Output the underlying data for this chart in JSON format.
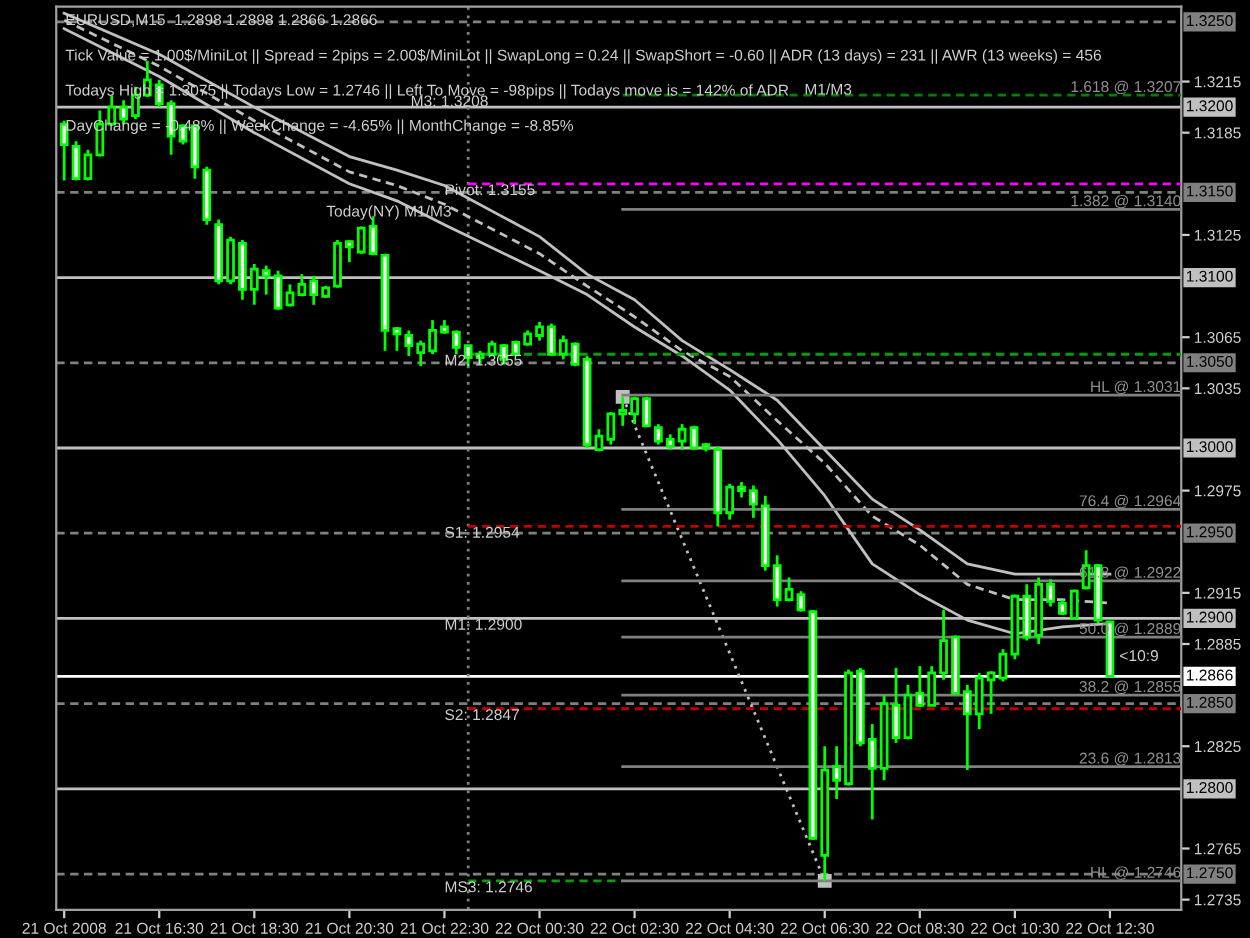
{
  "chart_data": {
    "type": "candlestick",
    "title": "EURUSD,M15  1.2898 1.2898 1.2866 1.2866",
    "color": "#00ff00",
    "annotations": [
      "Tick Value = 1.00$/MiniLot || Spread = 2pips = 2.00$/MiniLot || SwapLong = 0.24 || SwapShort = -0.60 || ADR (13 days) = 231 || AWR (13 weeks) = 456",
      "Todays High = 1.3075 || Todays Low = 1.2746 || Left To Move = -98pips || Todays move is = 142% of ADR",
      "DayChange = -0.48% || WeekChange = -4.65% || MonthChange = -8.85%",
      "Today(NY) M1/M3",
      "M1/M3",
      "M3: 1.3208",
      {
        "text": "Pivot: 1.3155",
        "x": "2008-10-21T22:30",
        "y": 1.3155
      },
      {
        "text": "M2: 1.3055",
        "x": "2008-10-21T22:30",
        "y": 1.3055
      },
      {
        "text": "S1: 1.2954",
        "x": "2008-10-21T22:30",
        "y": 1.2954
      },
      {
        "text": "M1: 1.2900",
        "x": "2008-10-21T22:30",
        "y": 1.29
      },
      {
        "text": "S2: 1.2847",
        "x": "2008-10-21T22:30",
        "y": 1.2847
      },
      {
        "text": "MS3: 1.2746",
        "x": "2008-10-21T22:30",
        "y": 1.2746
      },
      {
        "text": "1.618 @ 1.3207",
        "x": "2008-10-22T14:00",
        "y": 1.3207
      },
      {
        "text": "1.382 @ 1.3140",
        "x": "2008-10-22T14:00",
        "y": 1.314
      },
      {
        "text": "HL @ 1.3031",
        "x": "2008-10-22T14:00",
        "y": 1.3031
      },
      {
        "text": "76.4 @ 1.2964",
        "x": "2008-10-22T14:00",
        "y": 1.2964
      },
      {
        "text": "61.8 @ 1.2922",
        "x": "2008-10-22T14:00",
        "y": 1.2922
      },
      {
        "text": "50.0 @ 1.2889",
        "x": "2008-10-22T14:00",
        "y": 1.2889
      },
      {
        "text": "38.2 @ 1.2855",
        "x": "2008-10-22T14:00",
        "y": 1.2855
      },
      {
        "text": "23.6 @ 1.2813",
        "x": "2008-10-22T14:00",
        "y": 1.2813
      },
      {
        "text": "HL @ 1.2746",
        "x": "2008-10-22T14:00",
        "y": 1.2746
      },
      "<10:9"
    ],
    "x": [
      "2008-10-21T14:30",
      "2008-10-21T14:45",
      "2008-10-21T15:00",
      "2008-10-21T15:15",
      "2008-10-21T15:30",
      "2008-10-21T15:45",
      "2008-10-21T16:00",
      "2008-10-21T16:15",
      "2008-10-21T16:30",
      "2008-10-21T16:45",
      "2008-10-21T17:00",
      "2008-10-21T17:15",
      "2008-10-21T17:30",
      "2008-10-21T17:45",
      "2008-10-21T18:00",
      "2008-10-21T18:15",
      "2008-10-21T18:30",
      "2008-10-21T18:45",
      "2008-10-21T19:00",
      "2008-10-21T19:15",
      "2008-10-21T19:30",
      "2008-10-21T19:45",
      "2008-10-21T20:00",
      "2008-10-21T20:15",
      "2008-10-21T20:30",
      "2008-10-21T20:45",
      "2008-10-21T21:00",
      "2008-10-21T21:15",
      "2008-10-21T21:30",
      "2008-10-21T21:45",
      "2008-10-21T22:00",
      "2008-10-21T22:15",
      "2008-10-21T22:30",
      "2008-10-21T22:45",
      "2008-10-21T23:00",
      "2008-10-21T23:15",
      "2008-10-21T23:30",
      "2008-10-21T23:45",
      "2008-10-22T00:00",
      "2008-10-22T00:15",
      "2008-10-22T00:30",
      "2008-10-22T00:45",
      "2008-10-22T01:00",
      "2008-10-22T01:15",
      "2008-10-22T01:30",
      "2008-10-22T01:45",
      "2008-10-22T02:00",
      "2008-10-22T02:15",
      "2008-10-22T02:30",
      "2008-10-22T02:45",
      "2008-10-22T03:00",
      "2008-10-22T03:15",
      "2008-10-22T03:30",
      "2008-10-22T03:45",
      "2008-10-22T04:00",
      "2008-10-22T04:15",
      "2008-10-22T04:30",
      "2008-10-22T04:45",
      "2008-10-22T05:00",
      "2008-10-22T05:15",
      "2008-10-22T05:30",
      "2008-10-22T05:45",
      "2008-10-22T06:00",
      "2008-10-22T06:15",
      "2008-10-22T06:30",
      "2008-10-22T06:45",
      "2008-10-22T07:00",
      "2008-10-22T07:15",
      "2008-10-22T07:30",
      "2008-10-22T07:45",
      "2008-10-22T08:00",
      "2008-10-22T08:15",
      "2008-10-22T08:30",
      "2008-10-22T08:45",
      "2008-10-22T09:00",
      "2008-10-22T09:15",
      "2008-10-22T09:30",
      "2008-10-22T09:45",
      "2008-10-22T10:00",
      "2008-10-22T10:15",
      "2008-10-22T10:30",
      "2008-10-22T10:45",
      "2008-10-22T11:00",
      "2008-10-22T11:15",
      "2008-10-22T11:30",
      "2008-10-22T11:45",
      "2008-10-22T12:00",
      "2008-10-22T12:15",
      "2008-10-22T12:30"
    ],
    "ohlc": [
      [
        1.319,
        1.3192,
        1.3157,
        1.3178
      ],
      [
        1.3177,
        1.318,
        1.3157,
        1.3158
      ],
      [
        1.3158,
        1.3175,
        1.3157,
        1.3172
      ],
      [
        1.3172,
        1.3198,
        1.3171,
        1.319
      ],
      [
        1.319,
        1.3207,
        1.3189,
        1.32
      ],
      [
        1.32,
        1.3204,
        1.319,
        1.3193
      ],
      [
        1.3195,
        1.3212,
        1.3193,
        1.3207
      ],
      [
        1.3207,
        1.3227,
        1.3206,
        1.3216
      ],
      [
        1.3213,
        1.3216,
        1.32,
        1.3202
      ],
      [
        1.3202,
        1.3204,
        1.3172,
        1.3183
      ],
      [
        1.3189,
        1.319,
        1.3178,
        1.318
      ],
      [
        1.3189,
        1.319,
        1.3158,
        1.3165
      ],
      [
        1.3163,
        1.3165,
        1.3131,
        1.3134
      ],
      [
        1.3131,
        1.3134,
        1.3096,
        1.3098
      ],
      [
        1.3098,
        1.3124,
        1.3096,
        1.3122
      ],
      [
        1.312,
        1.3122,
        1.3087,
        1.3093
      ],
      [
        1.3093,
        1.3108,
        1.3084,
        1.3105
      ],
      [
        1.3104,
        1.3107,
        1.309,
        1.3101
      ],
      [
        1.3101,
        1.3104,
        1.3081,
        1.3082
      ],
      [
        1.3084,
        1.3096,
        1.3083,
        1.3091
      ],
      [
        1.309,
        1.3102,
        1.3089,
        1.3096
      ],
      [
        1.3098,
        1.3101,
        1.3084,
        1.309
      ],
      [
        1.3089,
        1.3095,
        1.3088,
        1.3094
      ],
      [
        1.3095,
        1.3122,
        1.3094,
        1.312
      ],
      [
        1.3121,
        1.3122,
        1.3109,
        1.3118
      ],
      [
        1.3115,
        1.313,
        1.3114,
        1.3129
      ],
      [
        1.313,
        1.3136,
        1.3113,
        1.3114
      ],
      [
        1.3113,
        1.3114,
        1.3057,
        1.3069
      ],
      [
        1.307,
        1.3071,
        1.3057,
        1.3067
      ],
      [
        1.3066,
        1.3069,
        1.3054,
        1.306
      ],
      [
        1.3056,
        1.3063,
        1.3048,
        1.3061
      ],
      [
        1.3057,
        1.3075,
        1.3055,
        1.3069
      ],
      [
        1.3071,
        1.3075,
        1.3067,
        1.3068
      ],
      [
        1.3068,
        1.3069,
        1.3055,
        1.3059
      ],
      [
        1.306,
        1.306,
        1.3048,
        1.3053
      ],
      [
        1.3053,
        1.3057,
        1.3049,
        1.3055
      ],
      [
        1.3055,
        1.3063,
        1.3054,
        1.3061
      ],
      [
        1.306,
        1.3061,
        1.3049,
        1.3052
      ],
      [
        1.3062,
        1.3063,
        1.3054,
        1.3055
      ],
      [
        1.3061,
        1.3069,
        1.306,
        1.3067
      ],
      [
        1.3066,
        1.3074,
        1.3063,
        1.3071
      ],
      [
        1.3071,
        1.3073,
        1.3054,
        1.3055
      ],
      [
        1.3055,
        1.3066,
        1.3052,
        1.3063
      ],
      [
        1.3061,
        1.3062,
        1.3048,
        1.3049
      ],
      [
        1.3052,
        1.3054,
        1.3,
        1.3002
      ],
      [
        1.2999,
        1.3011,
        1.2998,
        1.3007
      ],
      [
        1.3005,
        1.3021,
        1.3002,
        1.302
      ],
      [
        1.302,
        1.303,
        1.3013,
        1.3022
      ],
      [
        1.302,
        1.303,
        1.3014,
        1.3029
      ],
      [
        1.3029,
        1.303,
        1.3013,
        1.3013
      ],
      [
        1.3012,
        1.3014,
        1.3002,
        1.3004
      ],
      [
        1.3005,
        1.3008,
        1.2999,
        1.3001
      ],
      [
        1.3004,
        1.3014,
        1.2999,
        1.3011
      ],
      [
        1.3012,
        1.3013,
        1.2999,
        1.3
      ],
      [
        1.3002,
        1.3003,
        1.2998,
        1.3
      ],
      [
        1.2999,
        1.3001,
        1.2954,
        1.2962
      ],
      [
        1.2962,
        1.2979,
        1.2958,
        1.2977
      ],
      [
        1.2977,
        1.298,
        1.2971,
        1.2975
      ],
      [
        1.2975,
        1.2978,
        1.2959,
        1.2967
      ],
      [
        1.2966,
        1.2972,
        1.2928,
        1.2931
      ],
      [
        1.2931,
        1.2937,
        1.2907,
        1.2911
      ],
      [
        1.2911,
        1.2924,
        1.291,
        1.2917
      ],
      [
        1.2914,
        1.2916,
        1.2904,
        1.2905
      ],
      [
        1.2904,
        1.2905,
        1.277,
        1.2771
      ],
      [
        1.2761,
        1.2825,
        1.2746,
        1.2811
      ],
      [
        1.2813,
        1.2825,
        1.2794,
        1.2805
      ],
      [
        1.2803,
        1.287,
        1.2802,
        1.2868
      ],
      [
        1.2869,
        1.2871,
        1.2825,
        1.2827
      ],
      [
        1.2829,
        1.2838,
        1.2782,
        1.2812
      ],
      [
        1.2812,
        1.2855,
        1.2805,
        1.285
      ],
      [
        1.2849,
        1.2871,
        1.2827,
        1.283
      ],
      [
        1.283,
        1.2861,
        1.2829,
        1.2855
      ],
      [
        1.2856,
        1.2872,
        1.2848,
        1.2849
      ],
      [
        1.2849,
        1.2872,
        1.2849,
        1.2868
      ],
      [
        1.2868,
        1.2905,
        1.2864,
        1.2887
      ],
      [
        1.2889,
        1.289,
        1.2856,
        1.2856
      ],
      [
        1.2857,
        1.2861,
        1.2811,
        1.2844
      ],
      [
        1.2844,
        1.2868,
        1.2835,
        1.2865
      ],
      [
        1.2864,
        1.2869,
        1.2844,
        1.2868
      ],
      [
        1.2865,
        1.2882,
        1.2863,
        1.2879
      ],
      [
        1.2879,
        1.2914,
        1.2876,
        1.2913
      ],
      [
        1.2913,
        1.292,
        1.2887,
        1.2889
      ],
      [
        1.289,
        1.2924,
        1.2885,
        1.292
      ],
      [
        1.292,
        1.2923,
        1.2907,
        1.291
      ],
      [
        1.2909,
        1.2911,
        1.2902,
        1.2903
      ],
      [
        1.29,
        1.2917,
        1.2899,
        1.2916
      ],
      [
        1.2918,
        1.294,
        1.2917,
        1.2931
      ],
      [
        1.2931,
        1.2932,
        1.2897,
        1.2899
      ],
      [
        1.2898,
        1.2898,
        1.2866,
        1.2866
      ]
    ],
    "series": [
      {
        "type": "line",
        "color": "#c0c0c0",
        "line_style": "solid",
        "x": [
          "2008-10-21T14:30",
          "2008-10-21T16:30",
          "2008-10-21T18:30",
          "2008-10-21T20:30",
          "2008-10-21T21:30",
          "2008-10-21T22:30",
          "2008-10-22T00:30",
          "2008-10-22T01:30",
          "2008-10-22T02:30",
          "2008-10-22T03:30",
          "2008-10-22T04:30",
          "2008-10-22T05:30",
          "2008-10-22T06:30",
          "2008-10-22T07:30",
          "2008-10-22T08:30",
          "2008-10-22T09:30",
          "2008-10-22T10:30",
          "2008-10-22T11:30",
          "2008-10-22T12:30"
        ],
        "values": [
          1.3255,
          1.3231,
          1.32,
          1.3171,
          1.3163,
          1.3154,
          1.3124,
          1.3102,
          1.3087,
          1.3063,
          1.3046,
          1.3028,
          1.2999,
          1.297,
          1.2952,
          1.2932,
          1.2926,
          1.2926,
          1.2926
        ]
      },
      {
        "type": "line",
        "color": "#c0c0c0",
        "line_style": "dashed",
        "x": [
          "2008-10-21T14:30",
          "2008-10-21T16:30",
          "2008-10-21T18:30",
          "2008-10-21T20:30",
          "2008-10-21T21:30",
          "2008-10-21T22:30",
          "2008-10-22T00:30",
          "2008-10-22T01:30",
          "2008-10-22T02:30",
          "2008-10-22T03:30",
          "2008-10-22T04:30",
          "2008-10-22T05:30",
          "2008-10-22T06:30",
          "2008-10-22T07:30",
          "2008-10-22T08:30",
          "2008-10-22T09:30",
          "2008-10-22T10:30",
          "2008-10-22T11:30",
          "2008-10-22T12:30"
        ],
        "values": [
          1.3251,
          1.3224,
          1.3192,
          1.3162,
          1.3154,
          1.3143,
          1.3114,
          1.3095,
          1.3077,
          1.3057,
          1.3042,
          1.3016,
          1.2991,
          1.296,
          1.2943,
          1.292,
          1.2911,
          1.2911,
          1.2909
        ]
      },
      {
        "type": "line",
        "color": "#c0c0c0",
        "line_style": "solid",
        "x": [
          "2008-10-21T14:30",
          "2008-10-21T16:30",
          "2008-10-21T18:30",
          "2008-10-21T20:30",
          "2008-10-21T21:30",
          "2008-10-21T22:30",
          "2008-10-22T00:30",
          "2008-10-22T01:30",
          "2008-10-22T02:30",
          "2008-10-22T03:30",
          "2008-10-22T04:30",
          "2008-10-22T05:30",
          "2008-10-22T06:30",
          "2008-10-22T07:30",
          "2008-10-22T08:30",
          "2008-10-22T09:30",
          "2008-10-22T10:30",
          "2008-10-22T11:30",
          "2008-10-22T12:30"
        ],
        "values": [
          1.3246,
          1.3218,
          1.3185,
          1.3155,
          1.3145,
          1.3131,
          1.3104,
          1.309,
          1.3071,
          1.3054,
          1.3034,
          1.3005,
          1.2972,
          1.2932,
          1.2914,
          1.2899,
          1.2891,
          1.2895,
          1.2897
        ]
      },
      {
        "type": "line",
        "color": "#c0c0c0",
        "line_style": "dotted",
        "marker": "square",
        "x": [
          "2008-10-22T02:15",
          "2008-10-22T06:30"
        ],
        "values": [
          1.303,
          1.2746
        ]
      },
      {
        "type": "line",
        "color": "#ff00ff",
        "line_style": "dashed",
        "x": [
          "2008-10-21T23:00",
          "2008-10-22T14:00"
        ],
        "values": [
          1.3155,
          1.3155
        ]
      },
      {
        "type": "line",
        "color": "#00a000",
        "line_style": "dashed",
        "x": [
          "2008-10-21T23:00",
          "2008-10-22T14:00"
        ],
        "values": [
          1.3055,
          1.3055
        ]
      },
      {
        "type": "line",
        "color": "#c00000",
        "line_style": "dashed",
        "x": [
          "2008-10-21T23:00",
          "2008-10-22T14:00"
        ],
        "values": [
          1.2954,
          1.2954
        ]
      },
      {
        "type": "line",
        "color": "#c00000",
        "line_style": "dashed",
        "x": [
          "2008-10-21T23:00",
          "2008-10-22T14:00"
        ],
        "values": [
          1.2847,
          1.2847
        ]
      },
      {
        "type": "line",
        "color": "#00a000",
        "line_style": "dashed",
        "x": [
          "2008-10-21T23:00",
          "2008-10-22T02:15"
        ],
        "values": [
          1.2746,
          1.2746
        ]
      },
      {
        "type": "line",
        "color": "#008000",
        "line_style": "dashed",
        "x": [
          "2008-10-22T02:15",
          "2008-10-22T14:00"
        ],
        "values": [
          1.3207,
          1.3207
        ]
      },
      {
        "type": "line",
        "color": "#808080",
        "line_style": "solid",
        "x": [
          "2008-10-22T02:15",
          "2008-10-22T14:00"
        ],
        "values": [
          1.314,
          1.314
        ]
      },
      {
        "type": "line",
        "color": "#808080",
        "line_style": "solid",
        "x": [
          "2008-10-22T02:15",
          "2008-10-22T14:00"
        ],
        "values": [
          1.3031,
          1.3031
        ]
      },
      {
        "type": "line",
        "color": "#808080",
        "line_style": "solid",
        "x": [
          "2008-10-22T02:15",
          "2008-10-22T14:00"
        ],
        "values": [
          1.2964,
          1.2964
        ]
      },
      {
        "type": "line",
        "color": "#808080",
        "line_style": "solid",
        "x": [
          "2008-10-22T02:15",
          "2008-10-22T14:00"
        ],
        "values": [
          1.2922,
          1.2922
        ]
      },
      {
        "type": "line",
        "color": "#808080",
        "line_style": "solid",
        "x": [
          "2008-10-22T02:15",
          "2008-10-22T14:00"
        ],
        "values": [
          1.2889,
          1.2889
        ]
      },
      {
        "type": "line",
        "color": "#808080",
        "line_style": "solid",
        "x": [
          "2008-10-22T02:15",
          "2008-10-22T14:00"
        ],
        "values": [
          1.2855,
          1.2855
        ]
      },
      {
        "type": "line",
        "color": "#808080",
        "line_style": "solid",
        "x": [
          "2008-10-22T02:15",
          "2008-10-22T14:00"
        ],
        "values": [
          1.2813,
          1.2813
        ]
      },
      {
        "type": "line",
        "color": "#808080",
        "line_style": "solid",
        "x": [
          "2008-10-22T02:15",
          "2008-10-22T14:00"
        ],
        "values": [
          1.2746,
          1.2746
        ]
      }
    ],
    "ref_lines": [
      {
        "axis": "y",
        "value": 1.325,
        "label": "1.3250",
        "color": "#808080",
        "line_style": "dashed"
      },
      {
        "axis": "y",
        "value": 1.32,
        "label": "1.3200",
        "color": "#c0c0c0",
        "line_style": "solid"
      },
      {
        "axis": "y",
        "value": 1.315,
        "label": "1.3150",
        "color": "#808080",
        "line_style": "dashed"
      },
      {
        "axis": "y",
        "value": 1.31,
        "label": "1.3100",
        "color": "#c0c0c0",
        "line_style": "solid"
      },
      {
        "axis": "y",
        "value": 1.305,
        "label": "1.3050",
        "color": "#808080",
        "line_style": "dashed"
      },
      {
        "axis": "y",
        "value": 1.3,
        "label": "1.3000",
        "color": "#c0c0c0",
        "line_style": "solid"
      },
      {
        "axis": "y",
        "value": 1.295,
        "label": "1.2950",
        "color": "#808080",
        "line_style": "dashed"
      },
      {
        "axis": "y",
        "value": 1.29,
        "label": "1.2900",
        "color": "#c0c0c0",
        "line_style": "solid"
      },
      {
        "axis": "y",
        "value": 1.2866,
        "label": "1.2866",
        "color": "#ffffff",
        "line_style": "solid"
      },
      {
        "axis": "y",
        "value": 1.285,
        "label": "1.2850",
        "color": "#808080",
        "line_style": "dashed"
      },
      {
        "axis": "y",
        "value": 1.28,
        "label": "1.2800",
        "color": "#c0c0c0",
        "line_style": "solid"
      },
      {
        "axis": "y",
        "value": 1.275,
        "label": "1.2750",
        "color": "#808080",
        "line_style": "dashed"
      },
      {
        "axis": "x",
        "value": "2008-10-21T23:00",
        "color": "#808080",
        "line_style": "dotted"
      }
    ],
    "xlim": [
      "2008-10-21T14:20",
      "2008-10-22T14:00"
    ],
    "ylim": [
      1.2729,
      1.3259
    ],
    "xticks": [
      {
        "value": "2008-10-21T14:30",
        "label": "21 Oct 2008"
      },
      {
        "value": "2008-10-21T16:30",
        "label": "21 Oct 16:30"
      },
      {
        "value": "2008-10-21T18:30",
        "label": "21 Oct 18:30"
      },
      {
        "value": "2008-10-21T20:30",
        "label": "21 Oct 20:30"
      },
      {
        "value": "2008-10-21T22:30",
        "label": "21 Oct 22:30"
      },
      {
        "value": "2008-10-22T00:30",
        "label": "22 Oct 00:30"
      },
      {
        "value": "2008-10-22T02:30",
        "label": "22 Oct 02:30"
      },
      {
        "value": "2008-10-22T04:30",
        "label": "22 Oct 04:30"
      },
      {
        "value": "2008-10-22T06:30",
        "label": "22 Oct 06:30"
      },
      {
        "value": "2008-10-22T08:30",
        "label": "22 Oct 08:30"
      },
      {
        "value": "2008-10-22T10:30",
        "label": "22 Oct 10:30"
      },
      {
        "value": "2008-10-22T12:30",
        "label": "22 Oct 12:30"
      }
    ],
    "yticks": [
      1.2735,
      1.2765,
      1.2825,
      1.2885,
      1.2915,
      1.2975,
      1.3035,
      1.3065,
      1.3125,
      1.3185,
      1.3215
    ],
    "grid": false
  }
}
